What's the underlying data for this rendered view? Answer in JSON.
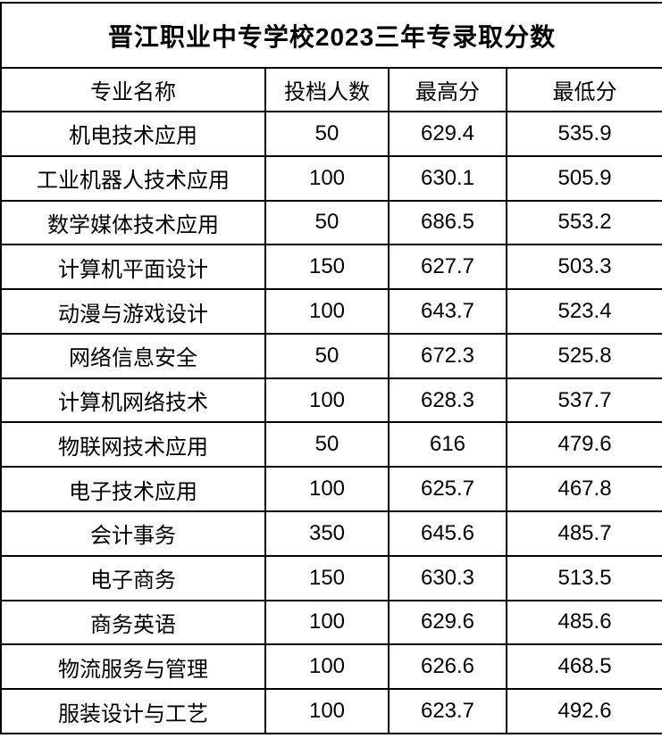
{
  "table": {
    "title": "晋江职业中专学校2023三年专录取分数",
    "columns": [
      "专业名称",
      "投档人数",
      "最高分",
      "最低分"
    ],
    "rows": [
      [
        "机电技术应用",
        "50",
        "629.4",
        "535.9"
      ],
      [
        "工业机器人技术应用",
        "100",
        "630.1",
        "505.9"
      ],
      [
        "数学媒体技术应用",
        "50",
        "686.5",
        "553.2"
      ],
      [
        "计算机平面设计",
        "150",
        "627.7",
        "503.3"
      ],
      [
        "动漫与游戏设计",
        "100",
        "643.7",
        "523.4"
      ],
      [
        "网络信息安全",
        "50",
        "672.3",
        "525.8"
      ],
      [
        "计算机网络技术",
        "100",
        "628.3",
        "537.7"
      ],
      [
        "物联网技术应用",
        "50",
        "616",
        "479.6"
      ],
      [
        "电子技术应用",
        "100",
        "625.7",
        "467.8"
      ],
      [
        "会计事务",
        "350",
        "645.6",
        "485.7"
      ],
      [
        "电子商务",
        "150",
        "630.3",
        "513.5"
      ],
      [
        "商务英语",
        "100",
        "629.6",
        "485.6"
      ],
      [
        "物流服务与管理",
        "100",
        "626.6",
        "468.5"
      ],
      [
        "服装设计与工艺",
        "100",
        "623.7",
        "492.6"
      ]
    ],
    "colors": {
      "border": "#000000",
      "text": "#000000",
      "background": "#ffffff"
    }
  }
}
